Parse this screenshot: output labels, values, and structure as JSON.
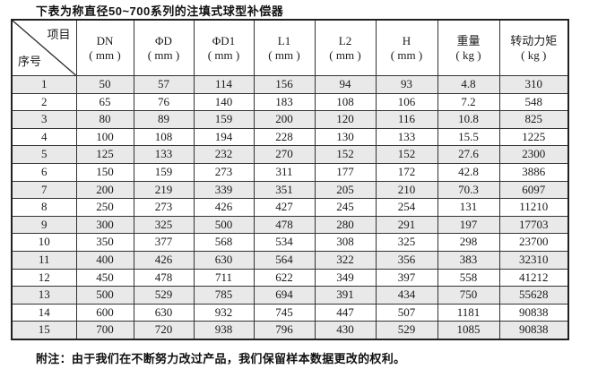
{
  "title": "下表为称直径50~700系列的注填式球型补偿器",
  "table": {
    "corner": {
      "top_right": "项目",
      "bottom_left": "序号"
    },
    "columns": [
      {
        "label": "DN",
        "unit": "( mm )"
      },
      {
        "label": "ΦD",
        "unit": "( mm )"
      },
      {
        "label": "ΦD1",
        "unit": "( mm )"
      },
      {
        "label": "L1",
        "unit": "( mm )"
      },
      {
        "label": "L2",
        "unit": "( mm )"
      },
      {
        "label": "H",
        "unit": "( mm )"
      },
      {
        "label": "重量",
        "unit": "( kg )"
      },
      {
        "label": "转动力矩",
        "unit": "( kg )"
      }
    ],
    "rows": [
      [
        "1",
        "50",
        "57",
        "114",
        "156",
        "94",
        "93",
        "4.8",
        "310"
      ],
      [
        "2",
        "65",
        "76",
        "140",
        "183",
        "108",
        "106",
        "7.2",
        "548"
      ],
      [
        "3",
        "80",
        "89",
        "159",
        "200",
        "120",
        "116",
        "10.8",
        "825"
      ],
      [
        "4",
        "100",
        "108",
        "194",
        "228",
        "130",
        "133",
        "15.5",
        "1225"
      ],
      [
        "5",
        "125",
        "133",
        "232",
        "270",
        "152",
        "152",
        "27.6",
        "2300"
      ],
      [
        "6",
        "150",
        "159",
        "273",
        "311",
        "177",
        "172",
        "42.8",
        "3886"
      ],
      [
        "7",
        "200",
        "219",
        "339",
        "351",
        "205",
        "210",
        "70.3",
        "6097"
      ],
      [
        "8",
        "250",
        "273",
        "426",
        "427",
        "245",
        "254",
        "131",
        "11210"
      ],
      [
        "9",
        "300",
        "325",
        "500",
        "478",
        "280",
        "291",
        "197",
        "17703"
      ],
      [
        "10",
        "350",
        "377",
        "568",
        "534",
        "308",
        "325",
        "298",
        "23700"
      ],
      [
        "11",
        "400",
        "426",
        "630",
        "564",
        "322",
        "356",
        "383",
        "32310"
      ],
      [
        "12",
        "450",
        "478",
        "711",
        "622",
        "349",
        "397",
        "558",
        "41212"
      ],
      [
        "13",
        "500",
        "529",
        "785",
        "694",
        "391",
        "434",
        "750",
        "55628"
      ],
      [
        "14",
        "600",
        "630",
        "932",
        "745",
        "447",
        "507",
        "1181",
        "90838"
      ],
      [
        "15",
        "700",
        "720",
        "938",
        "796",
        "430",
        "529",
        "1085",
        "90838"
      ]
    ]
  },
  "footnote": "附注：由于我们在不断努力改过产品，我们保留样本数据更改的权利。",
  "colors": {
    "row_shade": "#e9e9e9",
    "border": "#333333",
    "text": "#1a1a1a"
  }
}
